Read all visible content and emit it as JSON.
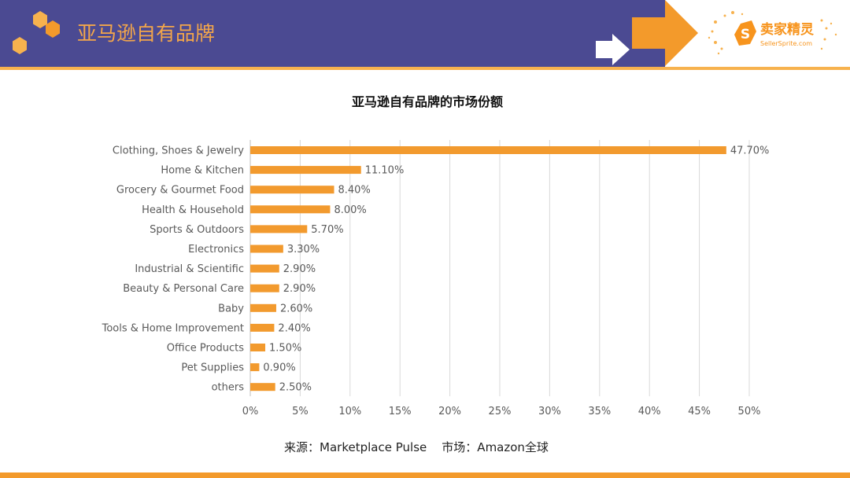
{
  "header": {
    "title": "亚马逊自有品牌",
    "logo_text": "卖家精灵",
    "logo_subtext": "SellerSprite.com"
  },
  "colors": {
    "header_bg": "#4b4a92",
    "accent_orange": "#f7941d",
    "bar": "#f29a2e",
    "header_line": "#f7b24e"
  },
  "chart_data": {
    "type": "bar",
    "orientation": "horizontal",
    "title": "亚马逊自有品牌的市场份额",
    "categories": [
      "Clothing, Shoes & Jewelry",
      "Home & Kitchen",
      "Grocery & Gourmet Food",
      "Health & Household",
      "Sports & Outdoors",
      "Electronics",
      "Industrial & Scientific",
      "Beauty & Personal Care",
      "Baby",
      "Tools & Home Improvement",
      "Office Products",
      "Pet Supplies",
      "others"
    ],
    "values": [
      47.7,
      11.1,
      8.4,
      8.0,
      5.7,
      3.3,
      2.9,
      2.9,
      2.6,
      2.4,
      1.5,
      0.9,
      2.5
    ],
    "value_labels": [
      "47.70%",
      "11.10%",
      "8.40%",
      "8.00%",
      "5.70%",
      "3.30%",
      "2.90%",
      "2.90%",
      "2.60%",
      "2.40%",
      "1.50%",
      "0.90%",
      "2.50%"
    ],
    "x_ticks": [
      "0%",
      "5%",
      "10%",
      "15%",
      "20%",
      "25%",
      "30%",
      "35%",
      "40%",
      "45%",
      "50%"
    ],
    "xlim": [
      0,
      50
    ],
    "xlabel": "",
    "ylabel": "",
    "grid": "vertical",
    "legend": "none"
  },
  "footer": {
    "source": "来源：Marketplace Pulse    市场：Amazon全球"
  }
}
